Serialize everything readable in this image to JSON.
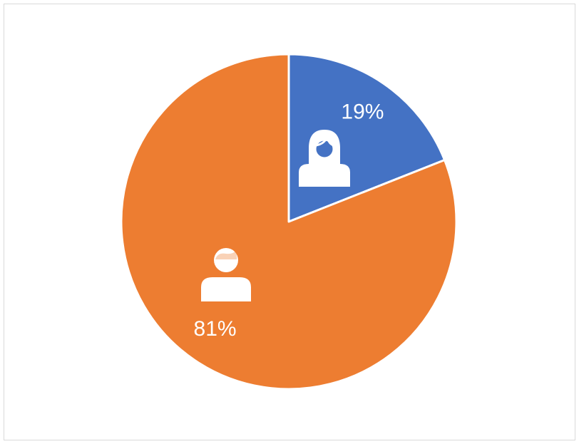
{
  "chart_data": {
    "type": "pie",
    "values": [
      19,
      81
    ],
    "value_labels": [
      "19%",
      "81%"
    ],
    "colors": [
      "#4472c4",
      "#ed7d31"
    ]
  }
}
